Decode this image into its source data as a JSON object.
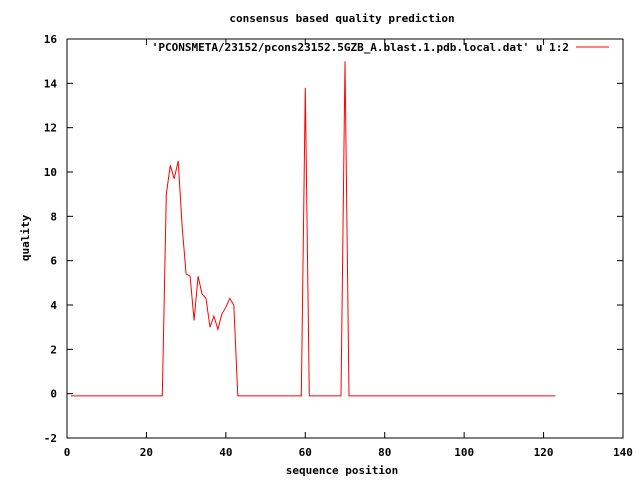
{
  "chart_data": {
    "type": "line",
    "title": "consensus based quality prediction",
    "xlabel": "sequence position",
    "ylabel": "quality",
    "xlim": [
      0,
      140
    ],
    "ylim": [
      -2,
      16
    ],
    "xticks": [
      0,
      20,
      40,
      60,
      80,
      100,
      120,
      140
    ],
    "yticks": [
      -2,
      0,
      2,
      4,
      6,
      8,
      10,
      12,
      14,
      16
    ],
    "grid": false,
    "legend_position": "top-right",
    "series": [
      {
        "name": "'PCONSMETA/23152/pcons23152.5GZB_A.blast.1.pdb.local.dat' u 1:2",
        "color": "#ff0000",
        "x": [
          1,
          24,
          25,
          26,
          27,
          28,
          29,
          30,
          31,
          32,
          33,
          34,
          35,
          36,
          37,
          38,
          39,
          40,
          41,
          42,
          43,
          44,
          58,
          59,
          60,
          61,
          62,
          68,
          69,
          70,
          71,
          72,
          123
        ],
        "y": [
          -0.1,
          -0.1,
          9.0,
          10.3,
          9.7,
          10.5,
          7.5,
          5.4,
          5.3,
          3.3,
          5.3,
          4.5,
          4.3,
          3.0,
          3.5,
          2.9,
          3.6,
          3.9,
          4.3,
          4.0,
          -0.1,
          -0.1,
          -0.1,
          -0.1,
          13.8,
          -0.1,
          -0.1,
          -0.1,
          -0.1,
          15.0,
          -0.1,
          -0.1,
          -0.1
        ]
      }
    ]
  }
}
